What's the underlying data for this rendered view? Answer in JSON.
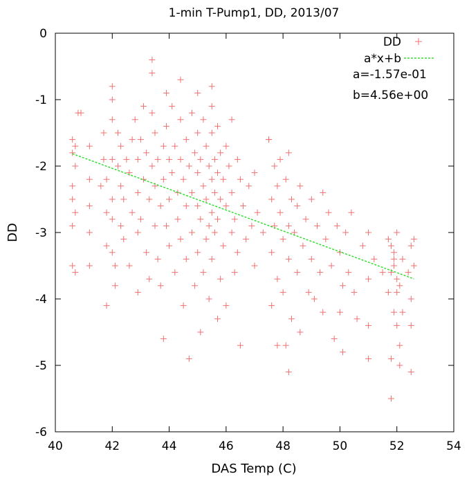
{
  "chart_data": {
    "type": "scatter",
    "title": "1-min T-Pump1, DD, 2013/07",
    "xlabel": "DAS Temp (C)",
    "ylabel": "DD",
    "xlim": [
      40,
      54
    ],
    "ylim": [
      -6,
      0
    ],
    "x_ticks": [
      "40",
      "42",
      "44",
      "46",
      "48",
      "50",
      "52",
      "54"
    ],
    "y_ticks": [
      "0",
      "-1",
      "-2",
      "-3",
      "-4",
      "-5",
      "-6"
    ],
    "legend_position": "top-right",
    "grid": false,
    "series": [
      {
        "name": "DD",
        "marker": "plus",
        "color": "#f07070",
        "points": [
          [
            40.6,
            -1.6
          ],
          [
            40.6,
            -1.8
          ],
          [
            40.6,
            -2.3
          ],
          [
            40.6,
            -2.5
          ],
          [
            40.6,
            -2.9
          ],
          [
            40.6,
            -3.5
          ],
          [
            40.7,
            -1.7
          ],
          [
            40.7,
            -2.0
          ],
          [
            40.7,
            -2.7
          ],
          [
            40.7,
            -3.6
          ],
          [
            40.8,
            -1.2
          ],
          [
            40.9,
            -1.2
          ],
          [
            41.2,
            -1.7
          ],
          [
            41.2,
            -2.2
          ],
          [
            41.2,
            -2.6
          ],
          [
            41.2,
            -3.0
          ],
          [
            41.2,
            -3.5
          ],
          [
            41.6,
            -2.3
          ],
          [
            41.7,
            -1.5
          ],
          [
            41.7,
            -1.9
          ],
          [
            41.8,
            -2.2
          ],
          [
            41.8,
            -2.7
          ],
          [
            41.8,
            -3.2
          ],
          [
            41.8,
            -4.1
          ],
          [
            42.0,
            -0.8
          ],
          [
            42.0,
            -1.0
          ],
          [
            42.0,
            -1.3
          ],
          [
            42.0,
            -1.9
          ],
          [
            42.0,
            -2.5
          ],
          [
            42.0,
            -2.8
          ],
          [
            42.0,
            -3.3
          ],
          [
            42.1,
            -3.5
          ],
          [
            42.1,
            -3.8
          ],
          [
            42.2,
            -1.5
          ],
          [
            42.2,
            -2.0
          ],
          [
            42.3,
            -1.7
          ],
          [
            42.3,
            -2.3
          ],
          [
            42.3,
            -2.9
          ],
          [
            42.4,
            -2.5
          ],
          [
            42.4,
            -3.1
          ],
          [
            42.5,
            -1.9
          ],
          [
            42.6,
            -2.1
          ],
          [
            42.6,
            -3.5
          ],
          [
            42.7,
            -1.6
          ],
          [
            42.7,
            -2.7
          ],
          [
            42.8,
            -1.3
          ],
          [
            42.9,
            -1.9
          ],
          [
            42.9,
            -2.4
          ],
          [
            42.9,
            -3.0
          ],
          [
            42.9,
            -3.9
          ],
          [
            43.0,
            -1.6
          ],
          [
            43.0,
            -2.8
          ],
          [
            43.1,
            -1.1
          ],
          [
            43.1,
            -2.2
          ],
          [
            43.2,
            -1.8
          ],
          [
            43.2,
            -3.3
          ],
          [
            43.3,
            -2.5
          ],
          [
            43.3,
            -3.7
          ],
          [
            43.4,
            -0.4
          ],
          [
            43.4,
            -0.6
          ],
          [
            43.4,
            -1.2
          ],
          [
            43.4,
            -2.0
          ],
          [
            43.5,
            -1.5
          ],
          [
            43.5,
            -2.3
          ],
          [
            43.5,
            -2.9
          ],
          [
            43.6,
            -1.9
          ],
          [
            43.6,
            -3.4
          ],
          [
            43.7,
            -2.6
          ],
          [
            43.7,
            -3.8
          ],
          [
            43.8,
            -1.7
          ],
          [
            43.8,
            -2.2
          ],
          [
            43.8,
            -4.6
          ],
          [
            43.9,
            -0.9
          ],
          [
            43.9,
            -1.4
          ],
          [
            43.9,
            -2.9
          ],
          [
            44.0,
            -1.9
          ],
          [
            44.0,
            -2.5
          ],
          [
            44.0,
            -3.2
          ],
          [
            44.1,
            -1.1
          ],
          [
            44.1,
            -2.1
          ],
          [
            44.2,
            -1.7
          ],
          [
            44.2,
            -3.6
          ],
          [
            44.3,
            -2.4
          ],
          [
            44.3,
            -2.8
          ],
          [
            44.4,
            -0.7
          ],
          [
            44.4,
            -1.3
          ],
          [
            44.4,
            -1.9
          ],
          [
            44.4,
            -3.1
          ],
          [
            44.5,
            -2.2
          ],
          [
            44.5,
            -4.1
          ],
          [
            44.6,
            -1.6
          ],
          [
            44.6,
            -2.6
          ],
          [
            44.6,
            -3.4
          ],
          [
            44.7,
            -2.0
          ],
          [
            44.7,
            -4.9
          ],
          [
            44.8,
            -1.2
          ],
          [
            44.8,
            -2.4
          ],
          [
            44.8,
            -3.0
          ],
          [
            44.9,
            -1.8
          ],
          [
            44.9,
            -3.8
          ],
          [
            45.0,
            -0.9
          ],
          [
            45.0,
            -1.5
          ],
          [
            45.0,
            -2.1
          ],
          [
            45.0,
            -2.6
          ],
          [
            45.0,
            -3.3
          ],
          [
            45.1,
            -1.9
          ],
          [
            45.1,
            -2.8
          ],
          [
            45.1,
            -4.5
          ],
          [
            45.2,
            -1.3
          ],
          [
            45.2,
            -2.3
          ],
          [
            45.2,
            -3.6
          ],
          [
            45.3,
            -1.7
          ],
          [
            45.3,
            -2.5
          ],
          [
            45.3,
            -3.1
          ],
          [
            45.4,
            -2.0
          ],
          [
            45.4,
            -2.9
          ],
          [
            45.4,
            -4.0
          ],
          [
            45.5,
            -0.8
          ],
          [
            45.5,
            -1.1
          ],
          [
            45.5,
            -1.5
          ],
          [
            45.5,
            -2.2
          ],
          [
            45.5,
            -2.7
          ],
          [
            45.5,
            -3.4
          ],
          [
            45.6,
            -1.9
          ],
          [
            45.6,
            -2.4
          ],
          [
            45.6,
            -3.0
          ],
          [
            45.7,
            -1.4
          ],
          [
            45.7,
            -2.1
          ],
          [
            45.7,
            -2.8
          ],
          [
            45.7,
            -4.3
          ],
          [
            45.8,
            -1.8
          ],
          [
            45.8,
            -2.5
          ],
          [
            45.8,
            -3.7
          ],
          [
            45.9,
            -2.2
          ],
          [
            45.9,
            -3.2
          ],
          [
            46.0,
            -1.7
          ],
          [
            46.0,
            -2.6
          ],
          [
            46.0,
            -4.1
          ],
          [
            46.1,
            -2.0
          ],
          [
            46.2,
            -1.3
          ],
          [
            46.2,
            -2.4
          ],
          [
            46.2,
            -3.0
          ],
          [
            46.3,
            -2.8
          ],
          [
            46.3,
            -3.6
          ],
          [
            46.4,
            -1.9
          ],
          [
            46.4,
            -3.3
          ],
          [
            46.5,
            -2.2
          ],
          [
            46.5,
            -4.7
          ],
          [
            46.6,
            -2.6
          ],
          [
            46.7,
            -3.1
          ],
          [
            46.8,
            -2.3
          ],
          [
            46.9,
            -2.9
          ],
          [
            47.0,
            -2.1
          ],
          [
            47.0,
            -3.5
          ],
          [
            47.1,
            -2.7
          ],
          [
            47.3,
            -3.0
          ],
          [
            47.5,
            -1.6
          ],
          [
            47.5,
            -1.6
          ],
          [
            47.6,
            -2.5
          ],
          [
            47.6,
            -3.3
          ],
          [
            47.6,
            -4.1
          ],
          [
            47.7,
            -2.0
          ],
          [
            47.7,
            -2.9
          ],
          [
            47.8,
            -2.3
          ],
          [
            47.8,
            -3.7
          ],
          [
            47.8,
            -4.7
          ],
          [
            47.9,
            -1.9
          ],
          [
            47.9,
            -2.7
          ],
          [
            48.0,
            -3.1
          ],
          [
            48.0,
            -3.9
          ],
          [
            48.1,
            -2.2
          ],
          [
            48.1,
            -4.7
          ],
          [
            48.2,
            -1.8
          ],
          [
            48.2,
            -2.9
          ],
          [
            48.2,
            -3.4
          ],
          [
            48.2,
            -5.1
          ],
          [
            48.3,
            -2.5
          ],
          [
            48.3,
            -4.3
          ],
          [
            48.4,
            -3.0
          ],
          [
            48.5,
            -2.6
          ],
          [
            48.5,
            -3.6
          ],
          [
            48.6,
            -2.3
          ],
          [
            48.6,
            -4.5
          ],
          [
            48.7,
            -3.2
          ],
          [
            48.8,
            -2.8
          ],
          [
            48.9,
            -3.9
          ],
          [
            49.0,
            -2.5
          ],
          [
            49.0,
            -3.4
          ],
          [
            49.1,
            -4.0
          ],
          [
            49.2,
            -2.9
          ],
          [
            49.3,
            -3.6
          ],
          [
            49.4,
            -2.4
          ],
          [
            49.4,
            -4.2
          ],
          [
            49.5,
            -3.1
          ],
          [
            49.6,
            -2.7
          ],
          [
            49.7,
            -3.5
          ],
          [
            49.8,
            -4.6
          ],
          [
            49.9,
            -2.9
          ],
          [
            50.0,
            -3.3
          ],
          [
            50.0,
            -4.2
          ],
          [
            50.1,
            -3.8
          ],
          [
            50.1,
            -4.8
          ],
          [
            50.2,
            -3.0
          ],
          [
            50.3,
            -3.6
          ],
          [
            50.4,
            -2.7
          ],
          [
            50.5,
            -3.9
          ],
          [
            50.6,
            -4.3
          ],
          [
            50.8,
            -3.2
          ],
          [
            51.0,
            -3.0
          ],
          [
            51.0,
            -3.7
          ],
          [
            51.0,
            -4.4
          ],
          [
            51.0,
            -4.9
          ],
          [
            51.2,
            -3.4
          ],
          [
            51.5,
            -3.6
          ],
          [
            51.7,
            -3.1
          ],
          [
            51.7,
            -3.9
          ],
          [
            51.8,
            -3.2
          ],
          [
            51.8,
            -4.9
          ],
          [
            51.8,
            -5.5
          ],
          [
            51.9,
            -3.3
          ],
          [
            51.9,
            -3.5
          ],
          [
            51.9,
            -4.2
          ],
          [
            52.0,
            -3.0
          ],
          [
            52.0,
            -3.7
          ],
          [
            52.0,
            -4.4
          ],
          [
            52.1,
            -3.8
          ],
          [
            52.1,
            -4.7
          ],
          [
            52.1,
            -5.0
          ],
          [
            52.2,
            -3.4
          ],
          [
            52.4,
            -3.6
          ],
          [
            52.5,
            -3.2
          ],
          [
            52.5,
            -4.0
          ],
          [
            52.5,
            -4.4
          ],
          [
            52.5,
            -5.1
          ],
          [
            52.6,
            -3.1
          ],
          [
            52.6,
            -3.5
          ],
          [
            52.2,
            -4.2
          ],
          [
            52.0,
            -3.9
          ],
          [
            51.8,
            -3.6
          ],
          [
            51.9,
            -3.4
          ]
        ]
      },
      {
        "name": "a*x+b",
        "type": "line",
        "style": "dashed",
        "color": "#33dd33",
        "a": -0.157,
        "b": 4.56,
        "x_range": [
          40.6,
          52.6
        ]
      }
    ],
    "annotations": [
      "a=-1.57e-01",
      "b=4.56e+00"
    ]
  }
}
